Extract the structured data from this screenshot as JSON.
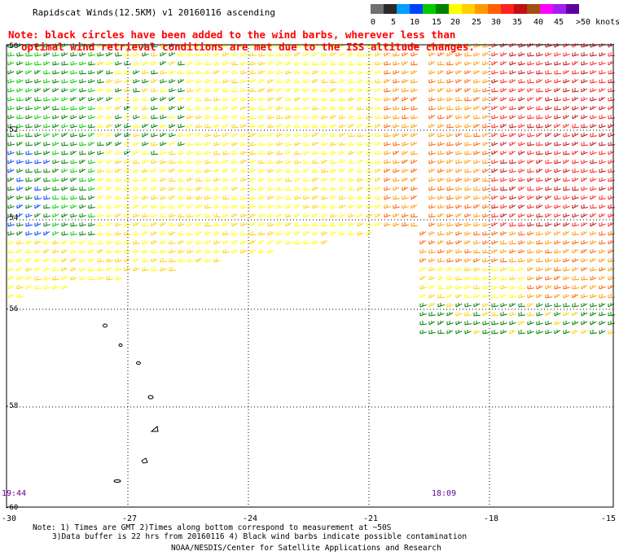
{
  "header": {
    "title": "Rapidscat Winds(12.5KM) v1 20160116 ascending",
    "note_line1": "Note: black circles have been added to the wind barbs, wherever less than",
    "note_line2": "optimal wind retrieval conditions are met due to the ISS altitude changes."
  },
  "legend": {
    "unit": ">50 knots",
    "colors": [
      "#707070",
      "#2a2a2a",
      "#00a0ff",
      "#0040ff",
      "#00cc00",
      "#008000",
      "#ffff00",
      "#ffd200",
      "#ff9a00",
      "#ff6000",
      "#ff2020",
      "#c01010",
      "#a05010",
      "#ff00ff",
      "#a020f0",
      "#6000a0"
    ],
    "labels": [
      "0",
      "5",
      "10",
      "15",
      "20",
      "25",
      "30",
      "35",
      "40",
      "45"
    ]
  },
  "axes": {
    "y_labels": [
      "-50",
      "-52",
      "-54",
      "-56",
      "-58",
      "-60"
    ],
    "x_labels": [
      "-30",
      "-27",
      "-24",
      "-21",
      "-18",
      "-15"
    ]
  },
  "times": {
    "left": "19:44",
    "right": "18:09"
  },
  "footer": {
    "line1": "Note: 1) Times are GMT 2)Times along bottom correspond to measurement at ~50S",
    "line2": "3)Data buffer is 22 hrs from 20160116 4) Black wind barbs indicate possible contamination",
    "line3": "NOAA/NESDIS/Center for Satellite Applications and Research"
  }
}
